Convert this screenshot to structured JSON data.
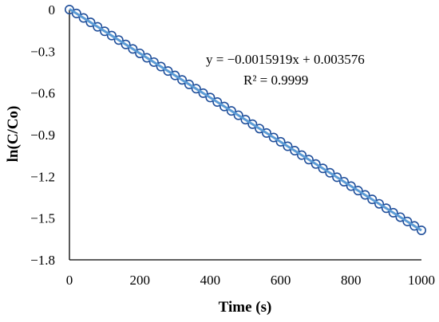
{
  "chart_data": {
    "type": "scatter",
    "title": "",
    "xlabel": "Time (s)",
    "ylabel": "ln(C/Co)",
    "xlim": [
      0,
      1000
    ],
    "ylim": [
      -1.8,
      0
    ],
    "x_ticks": [
      0,
      200,
      400,
      600,
      800,
      1000
    ],
    "y_ticks": [
      0,
      -0.3,
      -0.6,
      -0.9,
      -1.2,
      -1.5,
      -1.8
    ],
    "x_tick_labels": [
      "0",
      "200",
      "400",
      "600",
      "800",
      "1000"
    ],
    "y_tick_labels": [
      "0",
      "−0.3",
      "−0.6",
      "−0.9",
      "−1.2",
      "−1.5",
      "−1.8"
    ],
    "grid": false,
    "legend": "none",
    "series": [
      {
        "marker": "open-circle",
        "color": "#1f4e9a",
        "x": [
          0,
          20,
          40,
          60,
          80,
          100,
          120,
          140,
          160,
          180,
          200,
          220,
          240,
          260,
          280,
          300,
          320,
          340,
          360,
          380,
          400,
          420,
          440,
          460,
          480,
          500,
          520,
          540,
          560,
          580,
          600,
          620,
          640,
          660,
          680,
          700,
          720,
          740,
          760,
          780,
          800,
          820,
          840,
          860,
          880,
          900,
          920,
          940,
          960,
          980,
          1000
        ],
        "y": [
          0,
          -0.028,
          -0.06,
          -0.092,
          -0.124,
          -0.156,
          -0.187,
          -0.219,
          -0.251,
          -0.283,
          -0.315,
          -0.347,
          -0.378,
          -0.41,
          -0.442,
          -0.474,
          -0.506,
          -0.538,
          -0.569,
          -0.601,
          -0.633,
          -0.665,
          -0.697,
          -0.729,
          -0.76,
          -0.792,
          -0.824,
          -0.856,
          -0.888,
          -0.92,
          -0.951,
          -0.983,
          -1.015,
          -1.047,
          -1.079,
          -1.111,
          -1.142,
          -1.174,
          -1.206,
          -1.238,
          -1.27,
          -1.302,
          -1.333,
          -1.365,
          -1.397,
          -1.429,
          -1.461,
          -1.493,
          -1.524,
          -1.556,
          -1.588
        ]
      }
    ],
    "trendline": {
      "slope": -0.0015919,
      "intercept": 0.003576,
      "color": "#5b9bd5",
      "x_range": [
        0,
        1000
      ]
    },
    "annotations": {
      "equation": "y = −0.0015919x + 0.003576",
      "r_squared": "R² = 0.9999"
    }
  }
}
